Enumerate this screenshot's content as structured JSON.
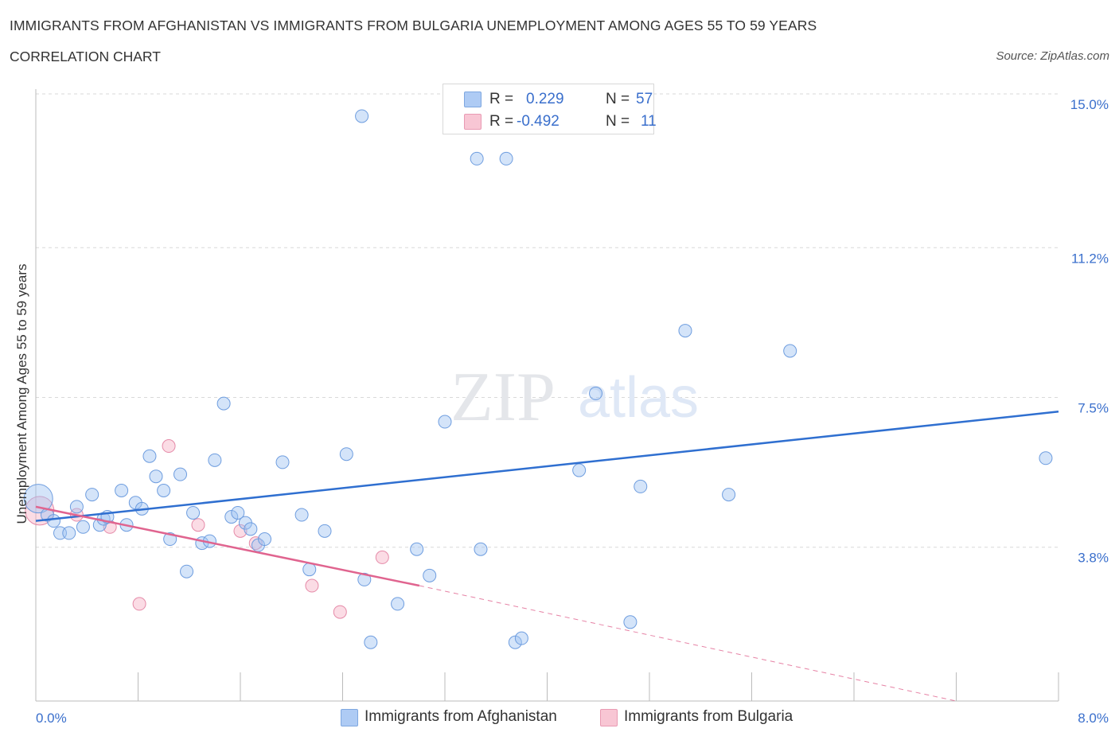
{
  "header": {
    "title": "IMMIGRANTS FROM AFGHANISTAN VS IMMIGRANTS FROM BULGARIA UNEMPLOYMENT AMONG AGES 55 TO 59 YEARS",
    "subtitle": "CORRELATION CHART",
    "source": "Source: ZipAtlas.com"
  },
  "watermark": {
    "zip": "ZIP",
    "atlas": "atlas"
  },
  "legend": {
    "rows": [
      {
        "r_label": "R =",
        "r_value": "0.229",
        "n_label": "N =",
        "n_value": "57",
        "color": "#aecbf4",
        "border": "#7ea7e0"
      },
      {
        "r_label": "R =",
        "r_value": "-0.492",
        "n_label": "N =",
        "n_value": "11",
        "color": "#f8c6d4",
        "border": "#e99ab3"
      }
    ]
  },
  "bottom_legend": [
    {
      "label": "Immigrants from Afghanistan",
      "color": "#aecbf4",
      "border": "#7ea7e0"
    },
    {
      "label": "Immigrants from Bulgaria",
      "color": "#f8c6d4",
      "border": "#e99ab3"
    }
  ],
  "colors": {
    "blue_fill": "rgba(160,196,242,0.45)",
    "blue_stroke": "#6e9ddf",
    "blue_line": "#2f6fd0",
    "pink_fill": "rgba(246,178,198,0.45)",
    "pink_stroke": "#e58aa8",
    "pink_line": "#e0648f",
    "grid": "#d9d9d9",
    "axis_text": "#3a6fcc"
  },
  "chart_data": {
    "type": "scatter",
    "title": "IMMIGRANTS FROM AFGHANISTAN VS IMMIGRANTS FROM BULGARIA UNEMPLOYMENT AMONG AGES 55 TO 59 YEARS",
    "xlabel": "",
    "ylabel": "Unemployment Among Ages 55 to 59 years",
    "xlim": [
      0,
      8.0
    ],
    "ylim": [
      0,
      15.0
    ],
    "x_ticks": [
      "0.0%",
      "8.0%"
    ],
    "y_ticks": [
      {
        "value": 3.8,
        "label": "3.8%"
      },
      {
        "value": 7.5,
        "label": "7.5%"
      },
      {
        "value": 11.2,
        "label": "11.2%"
      },
      {
        "value": 15.0,
        "label": "15.0%"
      }
    ],
    "grid": true,
    "legend_position": "top-center",
    "series": [
      {
        "name": "Immigrants from Afghanistan",
        "R": 0.229,
        "N": 57,
        "trend": {
          "x": [
            0.0,
            8.0
          ],
          "y": [
            4.45,
            7.15
          ]
        },
        "points": [
          {
            "x": 0.02,
            "y": 5.0,
            "big": true
          },
          {
            "x": 0.09,
            "y": 4.6
          },
          {
            "x": 0.14,
            "y": 4.45
          },
          {
            "x": 0.19,
            "y": 4.15
          },
          {
            "x": 0.26,
            "y": 4.15
          },
          {
            "x": 0.32,
            "y": 4.8
          },
          {
            "x": 0.37,
            "y": 4.3
          },
          {
            "x": 0.44,
            "y": 5.1
          },
          {
            "x": 0.5,
            "y": 4.35
          },
          {
            "x": 0.53,
            "y": 4.5
          },
          {
            "x": 0.56,
            "y": 4.55
          },
          {
            "x": 0.67,
            "y": 5.2
          },
          {
            "x": 0.71,
            "y": 4.35
          },
          {
            "x": 0.78,
            "y": 4.9
          },
          {
            "x": 0.83,
            "y": 4.75
          },
          {
            "x": 0.89,
            "y": 6.05
          },
          {
            "x": 0.94,
            "y": 5.55
          },
          {
            "x": 1.0,
            "y": 5.2
          },
          {
            "x": 1.05,
            "y": 4.0
          },
          {
            "x": 1.13,
            "y": 5.6
          },
          {
            "x": 1.18,
            "y": 3.2
          },
          {
            "x": 1.23,
            "y": 4.65
          },
          {
            "x": 1.3,
            "y": 3.9
          },
          {
            "x": 1.36,
            "y": 3.95
          },
          {
            "x": 1.4,
            "y": 5.95
          },
          {
            "x": 1.47,
            "y": 7.35
          },
          {
            "x": 1.53,
            "y": 4.55
          },
          {
            "x": 1.58,
            "y": 4.65
          },
          {
            "x": 1.64,
            "y": 4.4
          },
          {
            "x": 1.68,
            "y": 4.25
          },
          {
            "x": 1.74,
            "y": 3.85
          },
          {
            "x": 1.79,
            "y": 4.0
          },
          {
            "x": 1.93,
            "y": 5.9
          },
          {
            "x": 2.08,
            "y": 4.6
          },
          {
            "x": 2.14,
            "y": 3.25
          },
          {
            "x": 2.26,
            "y": 4.2
          },
          {
            "x": 2.43,
            "y": 6.1
          },
          {
            "x": 2.55,
            "y": 14.45
          },
          {
            "x": 2.57,
            "y": 3.0
          },
          {
            "x": 2.62,
            "y": 1.45
          },
          {
            "x": 2.83,
            "y": 2.4
          },
          {
            "x": 2.98,
            "y": 3.75
          },
          {
            "x": 3.08,
            "y": 3.1
          },
          {
            "x": 3.2,
            "y": 6.9
          },
          {
            "x": 3.45,
            "y": 13.4
          },
          {
            "x": 3.48,
            "y": 3.75
          },
          {
            "x": 3.68,
            "y": 13.4
          },
          {
            "x": 3.75,
            "y": 1.45
          },
          {
            "x": 3.8,
            "y": 1.55
          },
          {
            "x": 4.25,
            "y": 5.7
          },
          {
            "x": 4.38,
            "y": 7.6
          },
          {
            "x": 4.65,
            "y": 1.95
          },
          {
            "x": 4.73,
            "y": 5.3
          },
          {
            "x": 5.08,
            "y": 9.15
          },
          {
            "x": 5.42,
            "y": 5.1
          },
          {
            "x": 5.9,
            "y": 8.65
          },
          {
            "x": 7.9,
            "y": 6.0
          }
        ]
      },
      {
        "name": "Immigrants from Bulgaria",
        "R": -0.492,
        "N": 11,
        "trend": {
          "x": [
            0.0,
            3.0
          ],
          "y": [
            4.8,
            2.85
          ]
        },
        "trend_dashed": {
          "x": [
            3.0,
            7.2
          ],
          "y": [
            2.85,
            0.0
          ]
        },
        "points": [
          {
            "x": 0.03,
            "y": 4.7,
            "big": true
          },
          {
            "x": 0.32,
            "y": 4.6
          },
          {
            "x": 0.58,
            "y": 4.3
          },
          {
            "x": 0.81,
            "y": 2.4
          },
          {
            "x": 1.04,
            "y": 6.3
          },
          {
            "x": 1.27,
            "y": 4.35
          },
          {
            "x": 1.6,
            "y": 4.2
          },
          {
            "x": 1.72,
            "y": 3.9
          },
          {
            "x": 2.16,
            "y": 2.85
          },
          {
            "x": 2.38,
            "y": 2.2
          },
          {
            "x": 2.71,
            "y": 3.55
          }
        ]
      }
    ]
  }
}
